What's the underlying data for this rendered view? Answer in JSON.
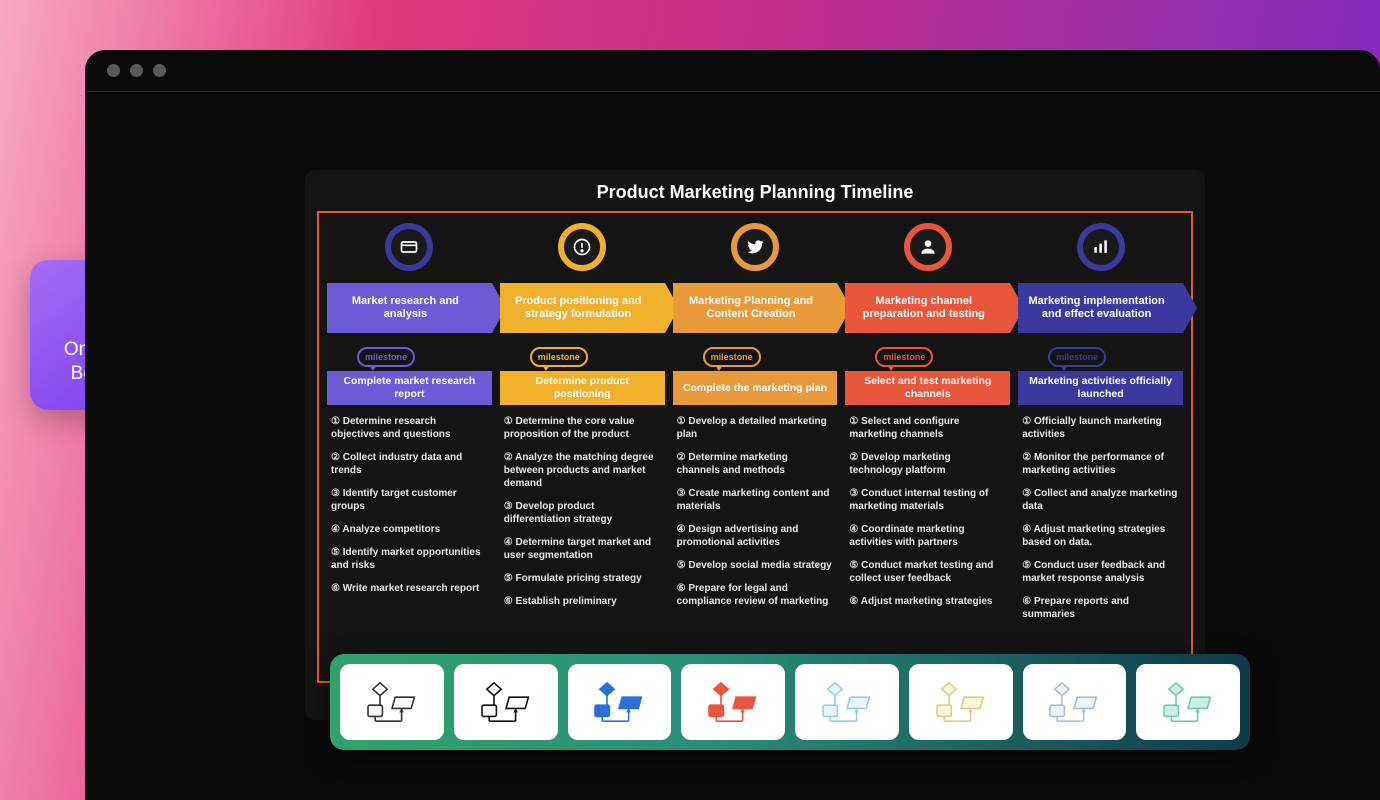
{
  "background_gradient": [
    "#f9a8c4",
    "#e03a7e",
    "#c52d8a",
    "#9c2fa8",
    "#7928ca"
  ],
  "window": {
    "bg": "#0a0a0a",
    "dot_color": "#5a5a5a"
  },
  "beautify": {
    "label_line1": "One Click",
    "label_line2": "Beautify",
    "bg_gradient": [
      "#a26df5",
      "#7c3aed"
    ]
  },
  "canvas": {
    "title": "Product Marketing Planning Timeline",
    "border_color": "#e55a2b",
    "bg": "#141414",
    "milestone_label": "milestone",
    "columns": [
      {
        "icon": "card",
        "icon_ring": "#3a3a9e",
        "icon_fill": "#1a1a1a",
        "phase_color": "#6b5bd4",
        "phase": "Market research and analysis",
        "milestone_color": "#6b5bd4",
        "milestone": "Complete market research report",
        "tasks": [
          "Determine research objectives and questions",
          "Collect industry data and trends",
          "Identify target customer groups",
          "Analyze competitors",
          "Identify market opportunities and risks",
          "Write market research report"
        ]
      },
      {
        "icon": "alert",
        "icon_ring": "#f0b02c",
        "icon_fill": "#1a1a1a",
        "phase_color": "#f0b02c",
        "phase": "Product positioning and strategy formulation",
        "milestone_color": "#f0b02c",
        "milestone": "Determine product positioning",
        "tasks": [
          "Determine the core value proposition of the product",
          "Analyze the matching degree between products and market demand",
          "Develop product differentiation strategy",
          "Determine target market and user segmentation",
          "Formulate pricing strategy",
          "Establish preliminary"
        ]
      },
      {
        "icon": "bird",
        "icon_ring": "#e89a3a",
        "icon_fill": "#1a1a1a",
        "phase_color": "#e89a3a",
        "phase": "Marketing Planning and Content Creation",
        "milestone_color": "#e89a3a",
        "milestone": "Complete the marketing plan",
        "tasks": [
          "Develop a detailed marketing plan",
          "Determine marketing channels and methods",
          "Create marketing content and materials",
          "Design advertising and promotional activities",
          "Develop social media strategy",
          "Prepare for legal and compliance review of marketing"
        ]
      },
      {
        "icon": "user",
        "icon_ring": "#e8563c",
        "icon_fill": "#1a1a1a",
        "phase_color": "#e8563c",
        "phase": "Marketing channel preparation and testing",
        "milestone_color": "#e8563c",
        "milestone": "Select and test marketing channels",
        "tasks": [
          "Select and configure marketing channels",
          "Develop marketing technology platform",
          "Conduct internal testing of marketing materials",
          "Coordinate marketing activities with partners",
          "Conduct market testing and collect user feedback",
          "Adjust marketing strategies"
        ]
      },
      {
        "icon": "chart",
        "icon_ring": "#3a3a9e",
        "icon_fill": "#1a1a1a",
        "phase_color": "#3a3a9e",
        "phase": "Marketing implementation and effect evaluation",
        "milestone_color": "#3a3a9e",
        "milestone": "Marketing activities officially launched",
        "tasks": [
          "Officially launch marketing activities",
          "Monitor the performance of marketing activities",
          "Collect and analyze marketing data",
          "Adjust marketing strategies based on data.",
          "Conduct user feedback and market response analysis",
          "Prepare reports and summaries"
        ]
      }
    ]
  },
  "theme_bar": {
    "bg_gradient": [
      "#2fa36b",
      "#2a8f7a",
      "#0e3a4a"
    ],
    "themes": [
      {
        "stroke": "#333333",
        "fill": "#ffffff"
      },
      {
        "stroke": "#111111",
        "fill": "#ffffff"
      },
      {
        "stroke": "#2b6fd8",
        "fill": "#2b6fd8"
      },
      {
        "stroke": "#e8563c",
        "fill": "#e8563c"
      },
      {
        "stroke": "#8fcfe6",
        "fill": "#e8f6fb"
      },
      {
        "stroke": "#d9cf8a",
        "fill": "#fbf6d8"
      },
      {
        "stroke": "#aabfcc",
        "fill": "#eef3f6"
      },
      {
        "stroke": "#6fc9b0",
        "fill": "#cdeee4"
      }
    ]
  }
}
